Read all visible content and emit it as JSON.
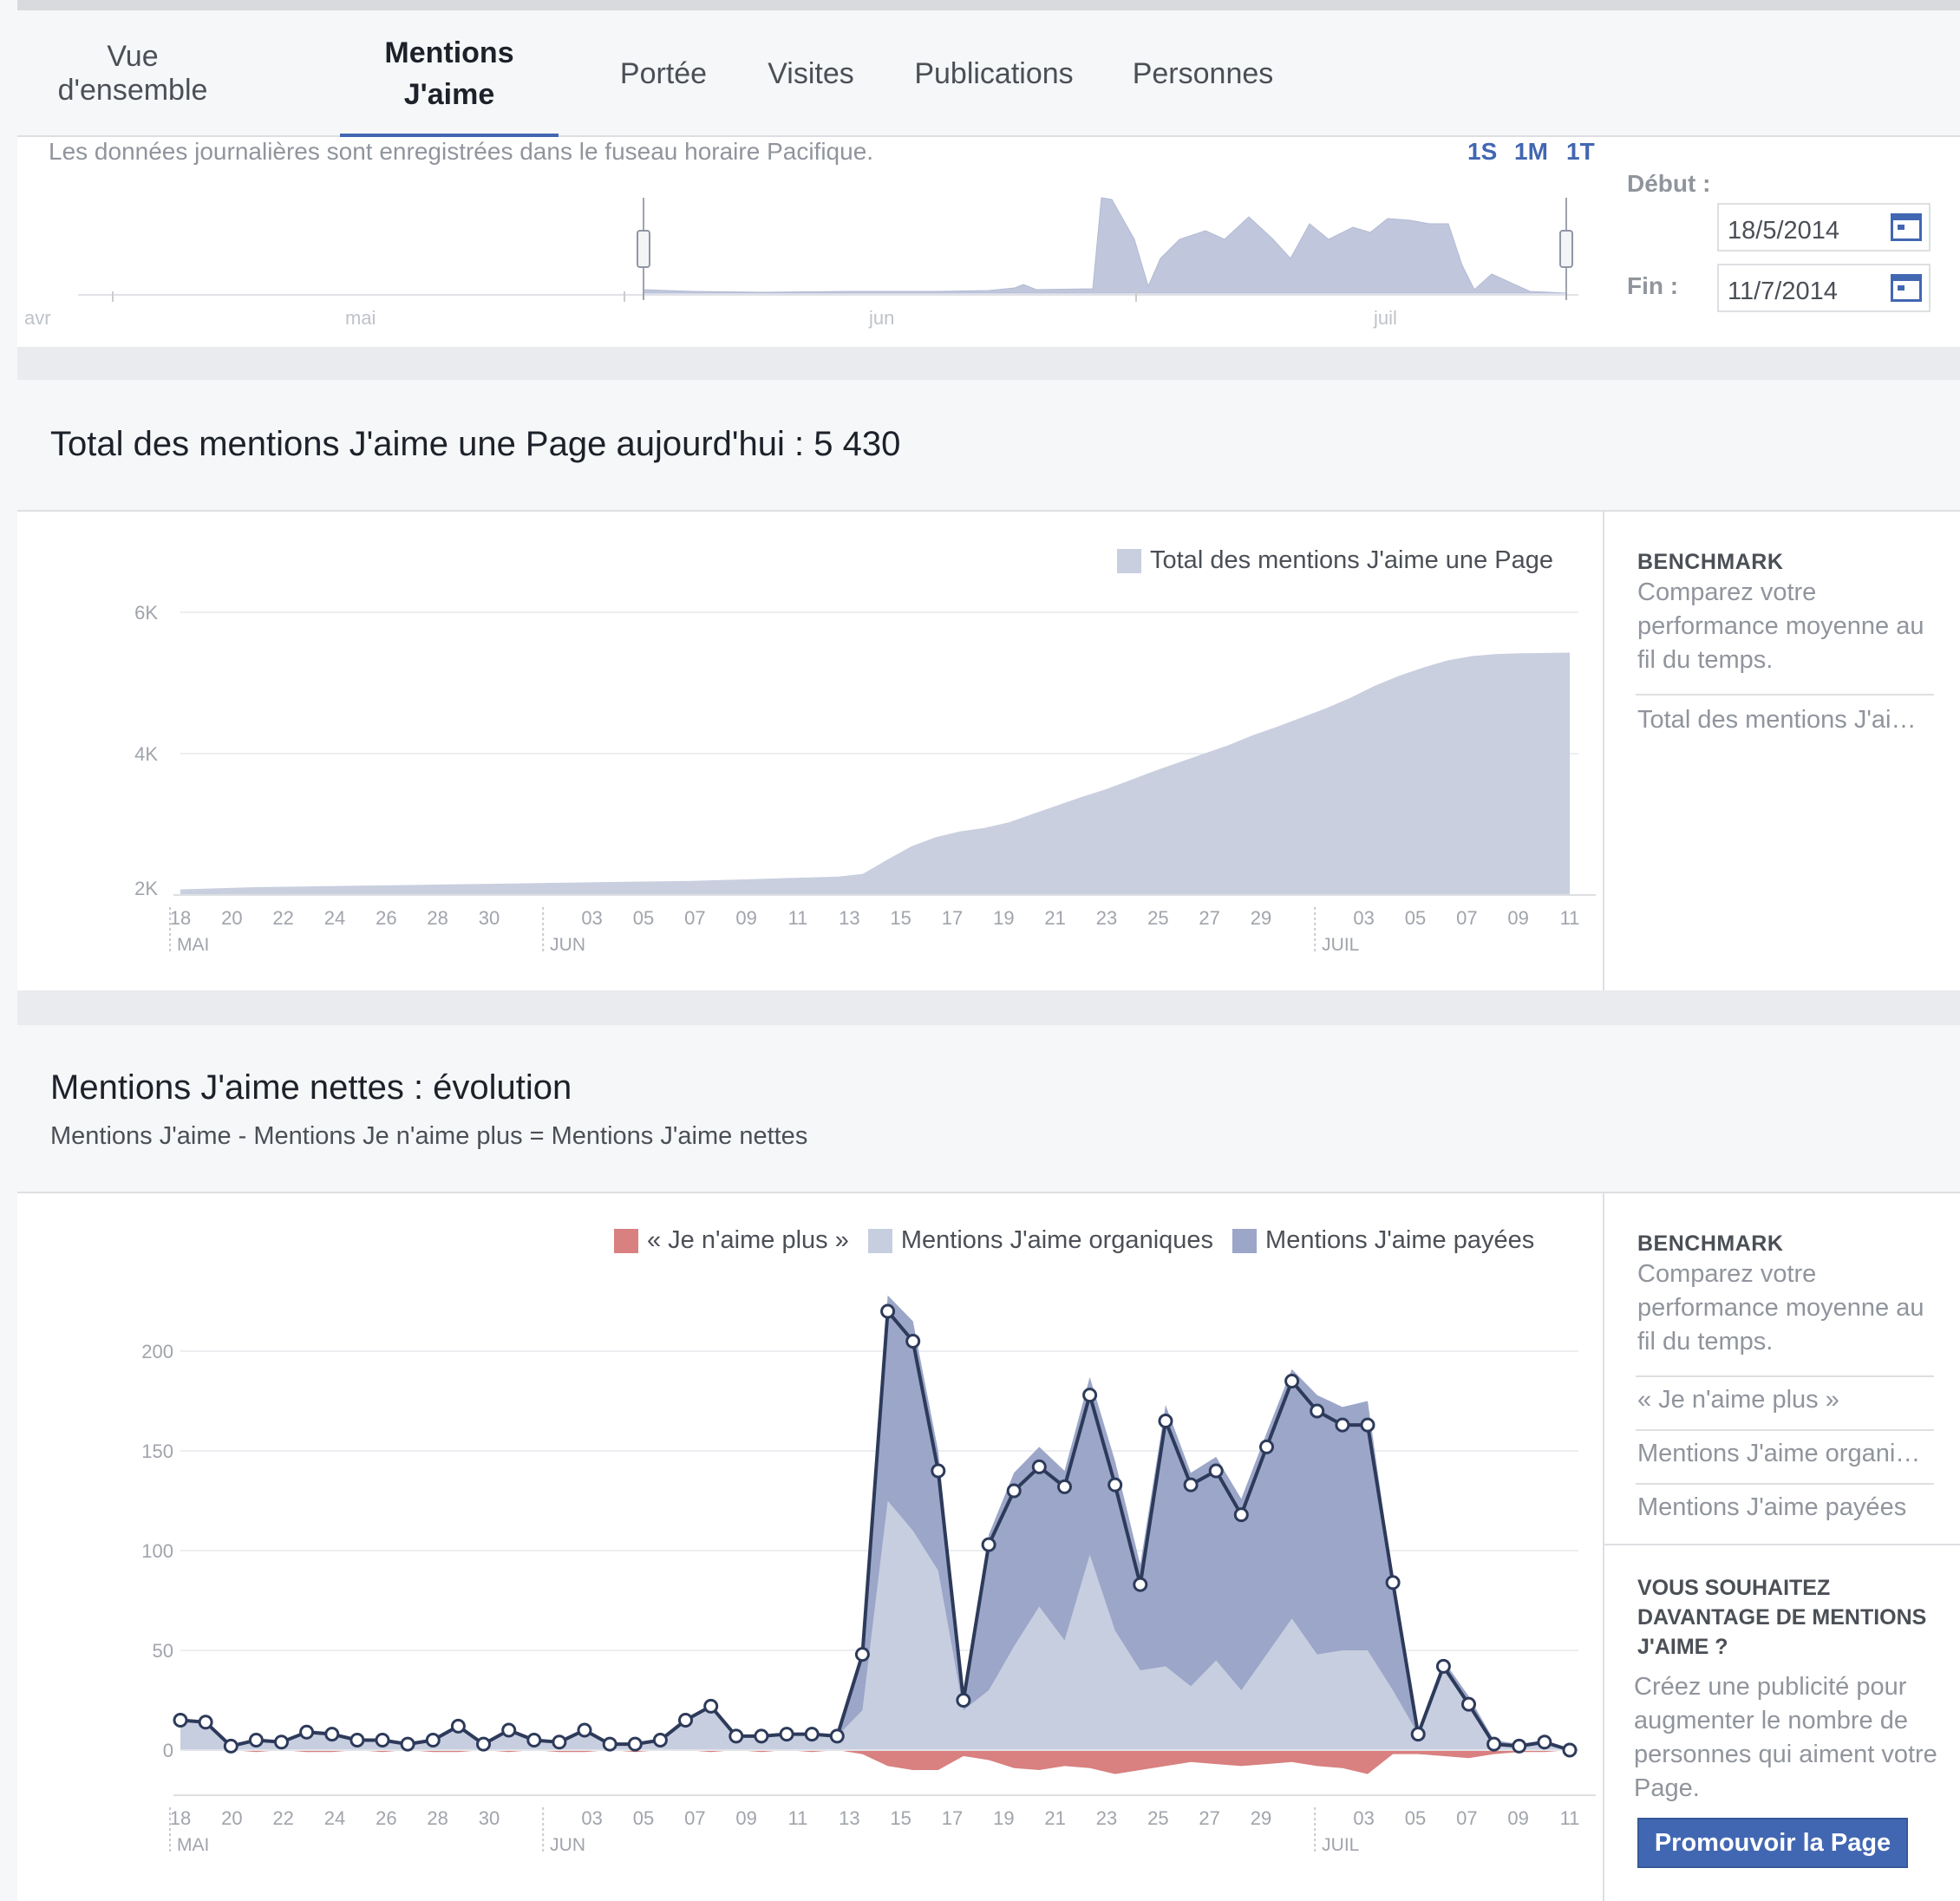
{
  "tabs": [
    {
      "label": "Vue d'ensemble",
      "active": false
    },
    {
      "label": "Mentions J'aime",
      "active": true
    },
    {
      "label": "Portée",
      "active": false
    },
    {
      "label": "Visites",
      "active": false
    },
    {
      "label": "Publications",
      "active": false
    },
    {
      "label": "Personnes",
      "active": false
    }
  ],
  "range": {
    "note": "Les données journalières sont enregistrées dans le fuseau horaire Pacifique.",
    "periods": [
      "1S",
      "1M",
      "1T"
    ],
    "start_label": "Début :",
    "start_value": "18/5/2014",
    "end_label": "Fin :",
    "end_value": "11/7/2014",
    "months": [
      "avr",
      "mai",
      "jun",
      "juil"
    ]
  },
  "total_section": {
    "title": "Total des mentions J'aime une Page aujourd'hui : 5 430"
  },
  "net_section": {
    "title": "Mentions J'aime nettes : évolution",
    "subtitle": "Mentions J'aime - Mentions Je n'aime plus = Mentions J'aime nettes"
  },
  "benchmark1": {
    "title": "BENCHMARK",
    "text": "Comparez votre performance moyenne au fil du temps.",
    "items": [
      "Total des mentions J'aime une Page"
    ]
  },
  "benchmark2": {
    "title": "BENCHMARK",
    "text": "Comparez votre performance moyenne au fil du temps.",
    "items": [
      "« Je n'aime plus »",
      "Mentions J'aime organiques",
      "Mentions J'aime payées"
    ]
  },
  "promo": {
    "title": "VOUS SOUHAITEZ DAVANTAGE DE MENTIONS J'AIME ?",
    "text": "Créez une publicité pour augmenter le nombre de personnes qui aiment votre Page.",
    "button": "Promouvoir la Page"
  },
  "colors": {
    "accent": "#4267b2",
    "total_fill": "#c9cfdf",
    "organic": "#c7cee0",
    "paid": "#9ba6c8",
    "unlikes": "#d98080",
    "net_line": "#2d3a5a"
  },
  "chart_data": [
    {
      "type": "area",
      "title": "",
      "x_ticks": [
        "18",
        "20",
        "22",
        "24",
        "26",
        "28",
        "30",
        "03",
        "05",
        "07",
        "09",
        "11",
        "13",
        "15",
        "17",
        "19",
        "21",
        "23",
        "25",
        "27",
        "29",
        "03",
        "05",
        "07",
        "09",
        "11"
      ],
      "month_labels": [
        "MAI",
        "JUN",
        "JUIL"
      ],
      "y_ticks": [
        "2K",
        "4K",
        "6K"
      ],
      "ylim": [
        2000,
        6000
      ],
      "series": [
        {
          "name": "Total des mentions J'aime une Page",
          "values": [
            2080,
            2090,
            2100,
            2110,
            2115,
            2120,
            2125,
            2130,
            2135,
            2140,
            2145,
            2150,
            2155,
            2160,
            2165,
            2170,
            2175,
            2180,
            2185,
            2190,
            2195,
            2200,
            2210,
            2220,
            2230,
            2240,
            2250,
            2260,
            2300,
            2500,
            2690,
            2820,
            2900,
            2950,
            3030,
            3150,
            3270,
            3390,
            3500,
            3630,
            3760,
            3880,
            4000,
            4120,
            4260,
            4380,
            4510,
            4640,
            4790,
            4960,
            5100,
            5220,
            5320,
            5380,
            5410,
            5420,
            5425,
            5430
          ]
        }
      ]
    },
    {
      "type": "line",
      "title": "",
      "x_ticks": [
        "18",
        "20",
        "22",
        "24",
        "26",
        "28",
        "30",
        "03",
        "05",
        "07",
        "09",
        "11",
        "13",
        "15",
        "17",
        "19",
        "21",
        "23",
        "25",
        "27",
        "29",
        "03",
        "05",
        "07",
        "09",
        "11"
      ],
      "month_labels": [
        "MAI",
        "JUN",
        "JUIL"
      ],
      "y_ticks": [
        "0",
        "50",
        "100",
        "150",
        "200"
      ],
      "ylim": [
        -20,
        215
      ],
      "legend": [
        "« Je n'aime plus »",
        "Mentions J'aime organiques",
        "Mentions J'aime payées"
      ],
      "series": [
        {
          "name": "Mentions J'aime nettes",
          "values": [
            15,
            14,
            2,
            5,
            4,
            9,
            8,
            5,
            5,
            3,
            5,
            12,
            3,
            10,
            5,
            4,
            10,
            3,
            3,
            5,
            15,
            22,
            7,
            7,
            8,
            8,
            7,
            48,
            220,
            205,
            140,
            25,
            103,
            130,
            142,
            132,
            178,
            133,
            83,
            165,
            133,
            140,
            118,
            152,
            185,
            170,
            163,
            163,
            84,
            8,
            42,
            23,
            3,
            2,
            4,
            0
          ]
        },
        {
          "name": "Mentions J'aime organiques",
          "values": [
            15,
            14,
            2,
            5,
            4,
            9,
            8,
            5,
            5,
            3,
            5,
            12,
            3,
            10,
            5,
            4,
            10,
            3,
            3,
            5,
            15,
            22,
            7,
            7,
            8,
            8,
            7,
            20,
            125,
            110,
            90,
            20,
            30,
            52,
            72,
            55,
            98,
            60,
            40,
            42,
            32,
            45,
            30,
            48,
            66,
            48,
            50,
            50,
            30,
            8,
            40,
            22,
            3,
            2,
            4,
            0
          ]
        },
        {
          "name": "« Je n'aime plus »",
          "values": [
            0,
            0,
            0,
            -1,
            0,
            -1,
            -1,
            0,
            -1,
            0,
            -1,
            -1,
            0,
            -1,
            0,
            -1,
            -1,
            0,
            -1,
            0,
            0,
            -1,
            0,
            -1,
            0,
            -1,
            0,
            -2,
            -8,
            -10,
            -10,
            -3,
            -5,
            -9,
            -10,
            -8,
            -9,
            -12,
            -10,
            -8,
            -6,
            -7,
            -8,
            -7,
            -6,
            -8,
            -9,
            -12,
            -2,
            -2,
            -3,
            -4,
            -2,
            -1,
            -1,
            0
          ]
        }
      ]
    }
  ]
}
